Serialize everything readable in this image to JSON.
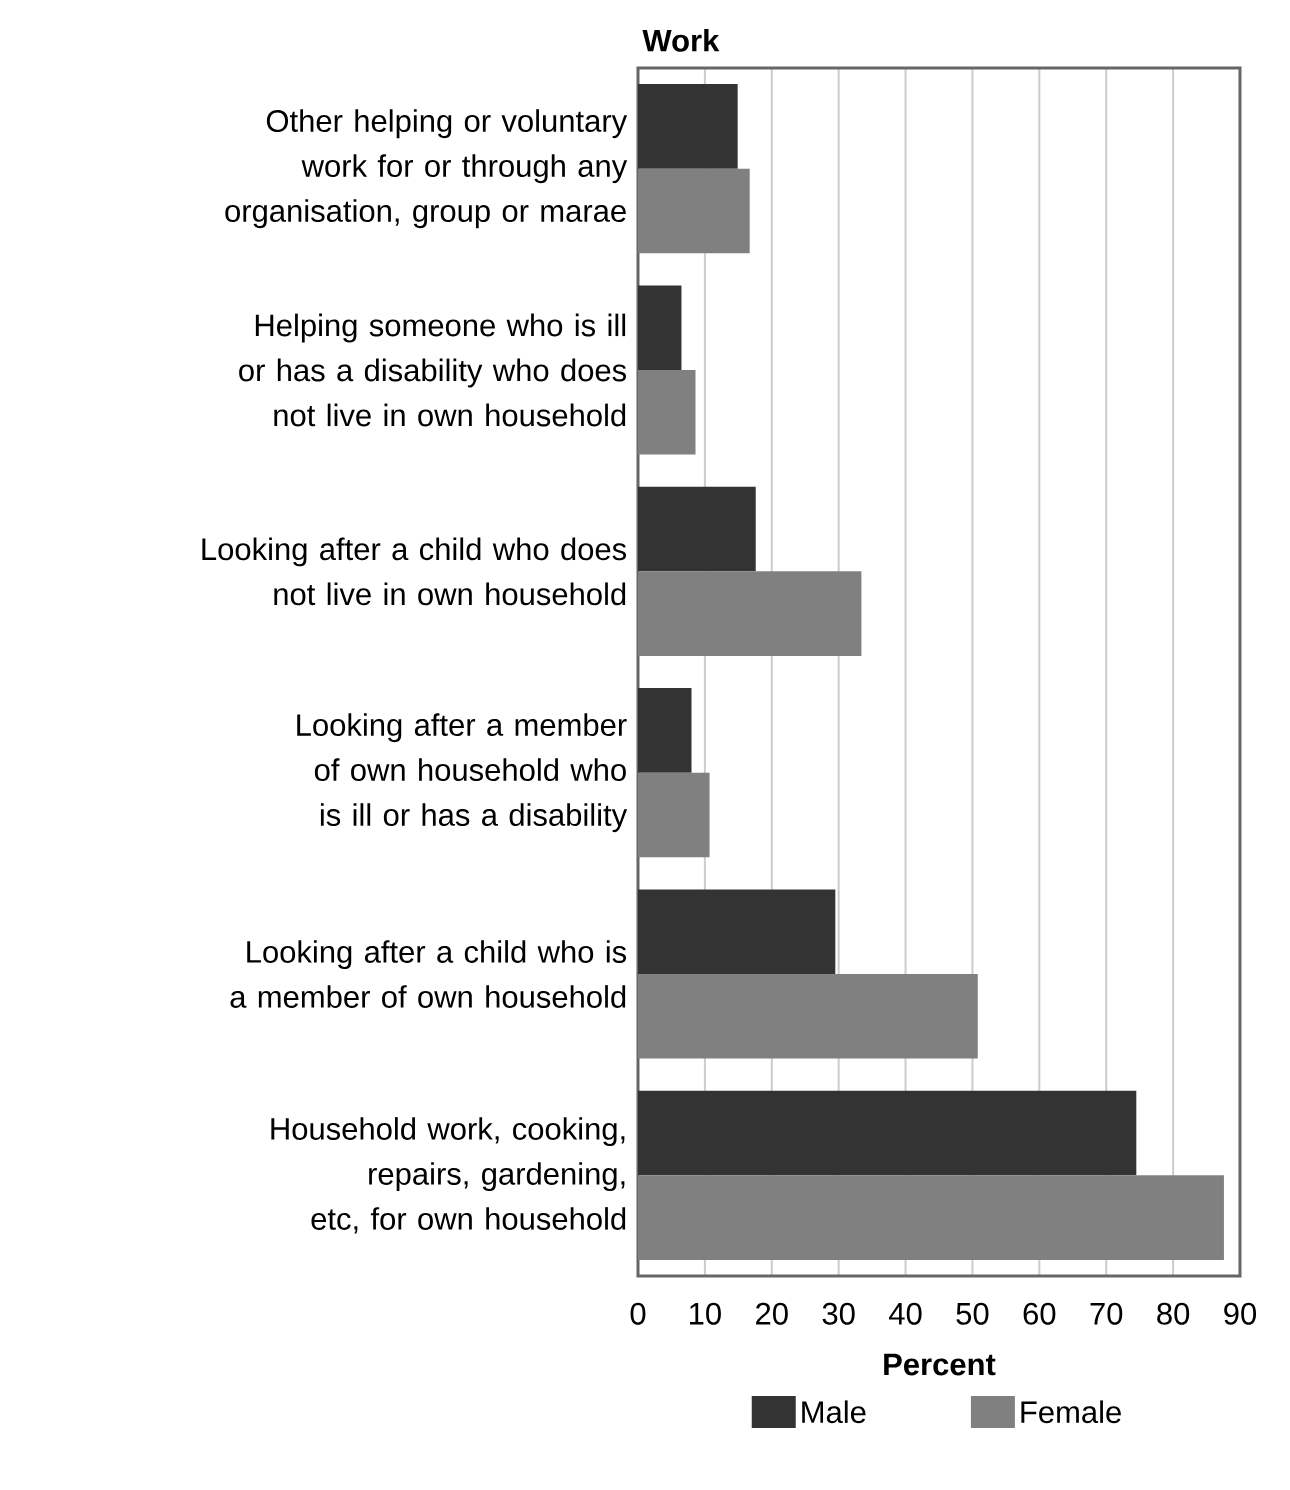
{
  "chart_data": {
    "type": "bar",
    "orientation": "horizontal",
    "title": "Work",
    "xlabel": "Percent",
    "categories": [
      "Other helping or voluntary work for or through any organisation, group or marae",
      "Helping someone who is ill or has a disability who does not live in own household",
      "Looking after a child who does not live in own household",
      "Looking after a member of own household who is ill or has a disability",
      "Looking after a child who is a member of own household",
      "Household work, cooking, repairs, gardening, etc, for own household"
    ],
    "series": [
      {
        "name": "Male",
        "color": "#333333",
        "values": [
          14.9,
          6.5,
          17.6,
          8.0,
          29.5,
          74.5
        ]
      },
      {
        "name": "Female",
        "color": "#808080",
        "values": [
          16.7,
          8.6,
          33.4,
          10.7,
          50.8,
          87.6
        ]
      }
    ],
    "xlim": [
      0,
      90
    ],
    "xticks": [
      0,
      10,
      20,
      30,
      40,
      50,
      60,
      70,
      80,
      90
    ],
    "grid": "x",
    "legend": "bottom"
  }
}
